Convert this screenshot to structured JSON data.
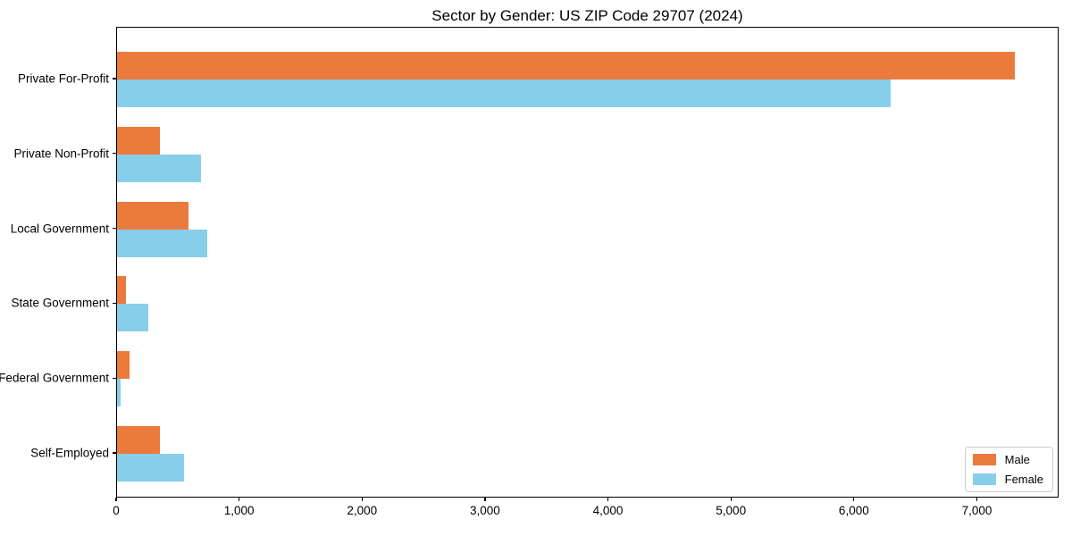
{
  "figure": {
    "title": "Sector by Gender: US ZIP Code 29707 (2024)"
  },
  "chart_data": {
    "type": "bar",
    "orientation": "horizontal",
    "title": "Sector by Gender: US ZIP Code 29707 (2024)",
    "categories": [
      "Private For-Profit",
      "Private Non-Profit",
      "Local Government",
      "State Government",
      "Federal Government",
      "Self-Employed"
    ],
    "series": [
      {
        "name": "Male",
        "color": "#EB7A3D",
        "values": [
          7300,
          350,
          580,
          70,
          100,
          350
        ]
      },
      {
        "name": "Female",
        "color": "#87CEEB",
        "values": [
          6290,
          685,
          730,
          255,
          30,
          545
        ]
      }
    ],
    "xlabel": "",
    "ylabel": "",
    "xlim": [
      0,
      7665
    ],
    "xticks": {
      "values": [
        0,
        1000,
        2000,
        3000,
        4000,
        5000,
        6000,
        7000
      ],
      "labels": [
        "0",
        "1,000",
        "2,000",
        "3,000",
        "4,000",
        "5,000",
        "6,000",
        "7,000"
      ]
    },
    "legend": {
      "position": "lower right"
    },
    "grid": false
  }
}
